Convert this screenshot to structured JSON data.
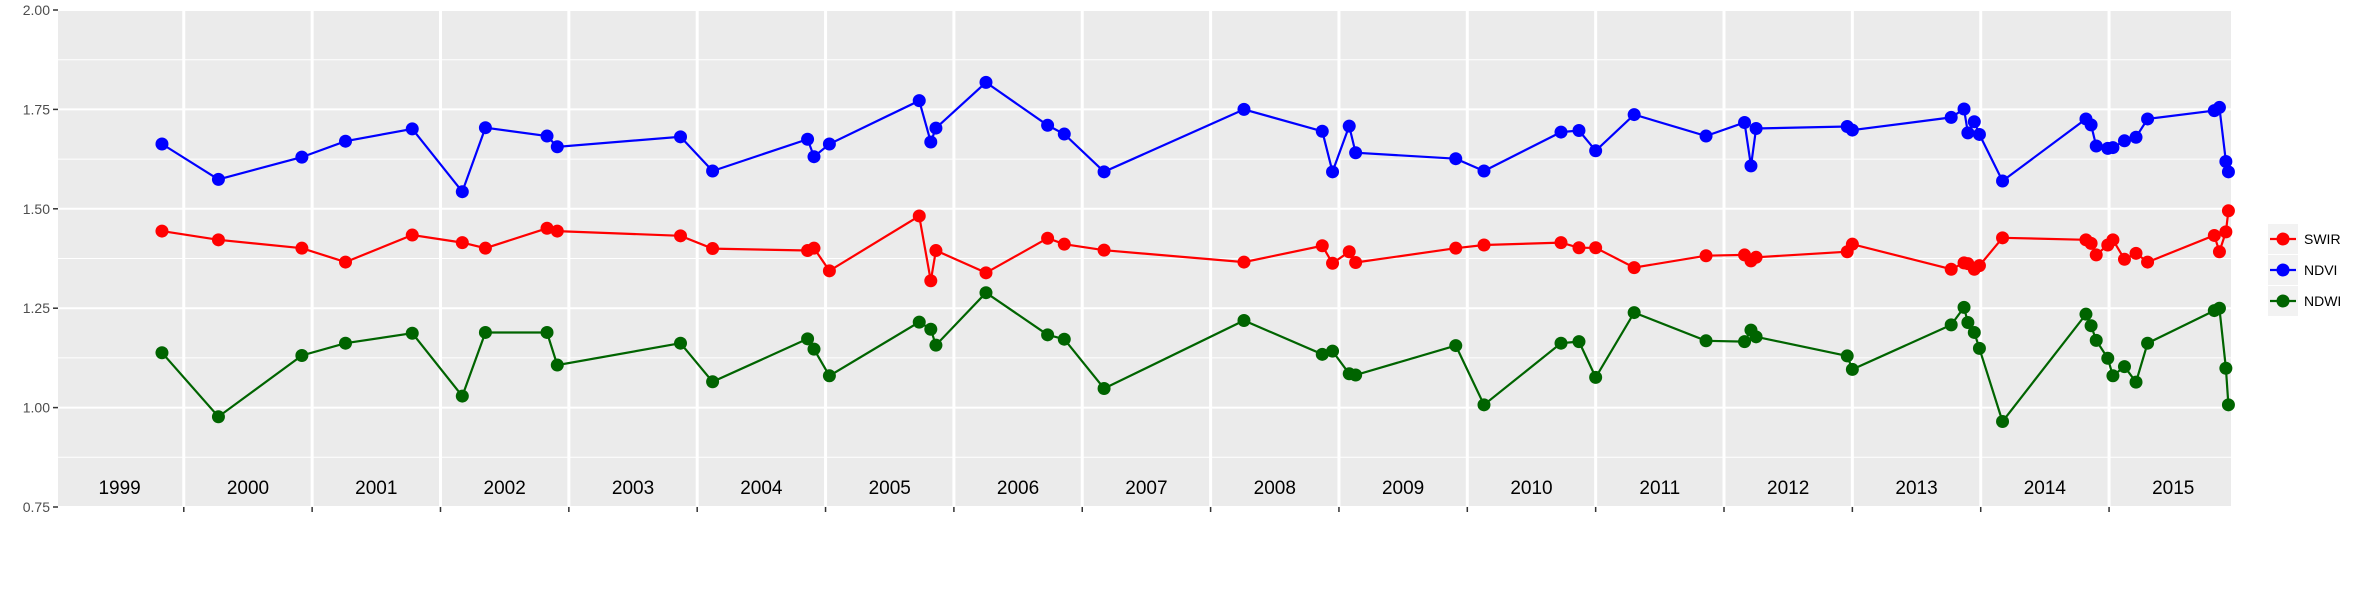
{
  "chart_data": {
    "type": "line",
    "title": "",
    "xlabel": "",
    "ylabel": "",
    "xlim": [
      1999.02,
      2015.95
    ],
    "ylim": [
      0.75,
      2.0
    ],
    "yticks": [
      "0.75",
      "1.00",
      "1.25",
      "1.50",
      "1.75",
      "2.00"
    ],
    "ytick_values": [
      0.75,
      1.0,
      1.25,
      1.5,
      1.75,
      2.0
    ],
    "xtick_values": [
      2000,
      2001,
      2002,
      2003,
      2004,
      2005,
      2006,
      2007,
      2008,
      2009,
      2010,
      2011,
      2012,
      2013,
      2014,
      2015
    ],
    "year_annotations": [
      "1999",
      "2000",
      "2001",
      "2002",
      "2003",
      "2004",
      "2005",
      "2006",
      "2007",
      "2008",
      "2009",
      "2010",
      "2011",
      "2012",
      "2013",
      "2014",
      "2015"
    ],
    "year_annotation_y": 0.8,
    "grid": true,
    "legend_position": "right",
    "x": [
      1999.83,
      2000.27,
      2000.92,
      2001.26,
      2001.78,
      2002.17,
      2002.35,
      2002.83,
      2002.91,
      2003.87,
      2004.12,
      2004.86,
      2004.91,
      2005.03,
      2005.73,
      2005.82,
      2005.86,
      2006.25,
      2006.73,
      2006.86,
      2007.17,
      2008.26,
      2008.87,
      2008.95,
      2009.08,
      2009.13,
      2009.91,
      2010.13,
      2010.73,
      2010.87,
      2011.0,
      2011.3,
      2011.86,
      2012.16,
      2012.21,
      2012.25,
      2012.96,
      2013.0,
      2013.77,
      2013.87,
      2013.9,
      2013.95,
      2013.99,
      2014.17,
      2014.82,
      2014.86,
      2014.9,
      2014.99,
      2015.03,
      2015.12,
      2015.21,
      2015.3,
      2015.82,
      2015.86,
      2015.91,
      2015.93
    ],
    "series": [
      {
        "name": "SWIR",
        "color": "#ff0000",
        "values": [
          1.444,
          1.422,
          1.401,
          1.366,
          1.434,
          1.415,
          1.401,
          1.451,
          1.444,
          1.432,
          1.4,
          1.395,
          1.401,
          1.344,
          1.482,
          1.319,
          1.395,
          1.339,
          1.426,
          1.411,
          1.396,
          1.366,
          1.407,
          1.363,
          1.392,
          1.365,
          1.401,
          1.409,
          1.415,
          1.402,
          1.402,
          1.352,
          1.382,
          1.384,
          1.369,
          1.378,
          1.392,
          1.411,
          1.348,
          1.364,
          1.362,
          1.348,
          1.357,
          1.427,
          1.422,
          1.413,
          1.384,
          1.409,
          1.422,
          1.373,
          1.388,
          1.366,
          1.433,
          1.392,
          1.442,
          1.495
        ]
      },
      {
        "name": "NDVI",
        "color": "#0000ff",
        "values": [
          1.663,
          1.574,
          1.63,
          1.67,
          1.701,
          1.543,
          1.704,
          1.683,
          1.656,
          1.681,
          1.595,
          1.675,
          1.631,
          1.663,
          1.772,
          1.668,
          1.703,
          1.818,
          1.71,
          1.688,
          1.593,
          1.75,
          1.695,
          1.593,
          1.708,
          1.641,
          1.626,
          1.595,
          1.693,
          1.697,
          1.646,
          1.737,
          1.683,
          1.717,
          1.608,
          1.702,
          1.707,
          1.698,
          1.73,
          1.751,
          1.691,
          1.719,
          1.687,
          1.57,
          1.726,
          1.711,
          1.658,
          1.652,
          1.654,
          1.671,
          1.68,
          1.726,
          1.747,
          1.755,
          1.619,
          1.593
        ]
      },
      {
        "name": "NDWI",
        "color": "#006400",
        "values": [
          1.138,
          0.977,
          1.131,
          1.162,
          1.187,
          1.029,
          1.189,
          1.189,
          1.107,
          1.162,
          1.065,
          1.173,
          1.147,
          1.08,
          1.215,
          1.197,
          1.157,
          1.289,
          1.183,
          1.172,
          1.048,
          1.219,
          1.134,
          1.142,
          1.085,
          1.082,
          1.156,
          1.007,
          1.162,
          1.166,
          1.076,
          1.239,
          1.168,
          1.166,
          1.195,
          1.178,
          1.13,
          1.096,
          1.208,
          1.252,
          1.214,
          1.189,
          1.149,
          0.965,
          1.235,
          1.206,
          1.169,
          1.124,
          1.08,
          1.103,
          1.064,
          1.162,
          1.244,
          1.25,
          1.099,
          1.007
        ]
      }
    ],
    "legend": [
      "SWIR",
      "NDVI",
      "NDWI"
    ],
    "colors": {
      "panel": "#ebebeb",
      "grid": "#ffffff",
      "axis_text": "#4d4d4d",
      "legend_key": "#f2f2f2"
    }
  }
}
